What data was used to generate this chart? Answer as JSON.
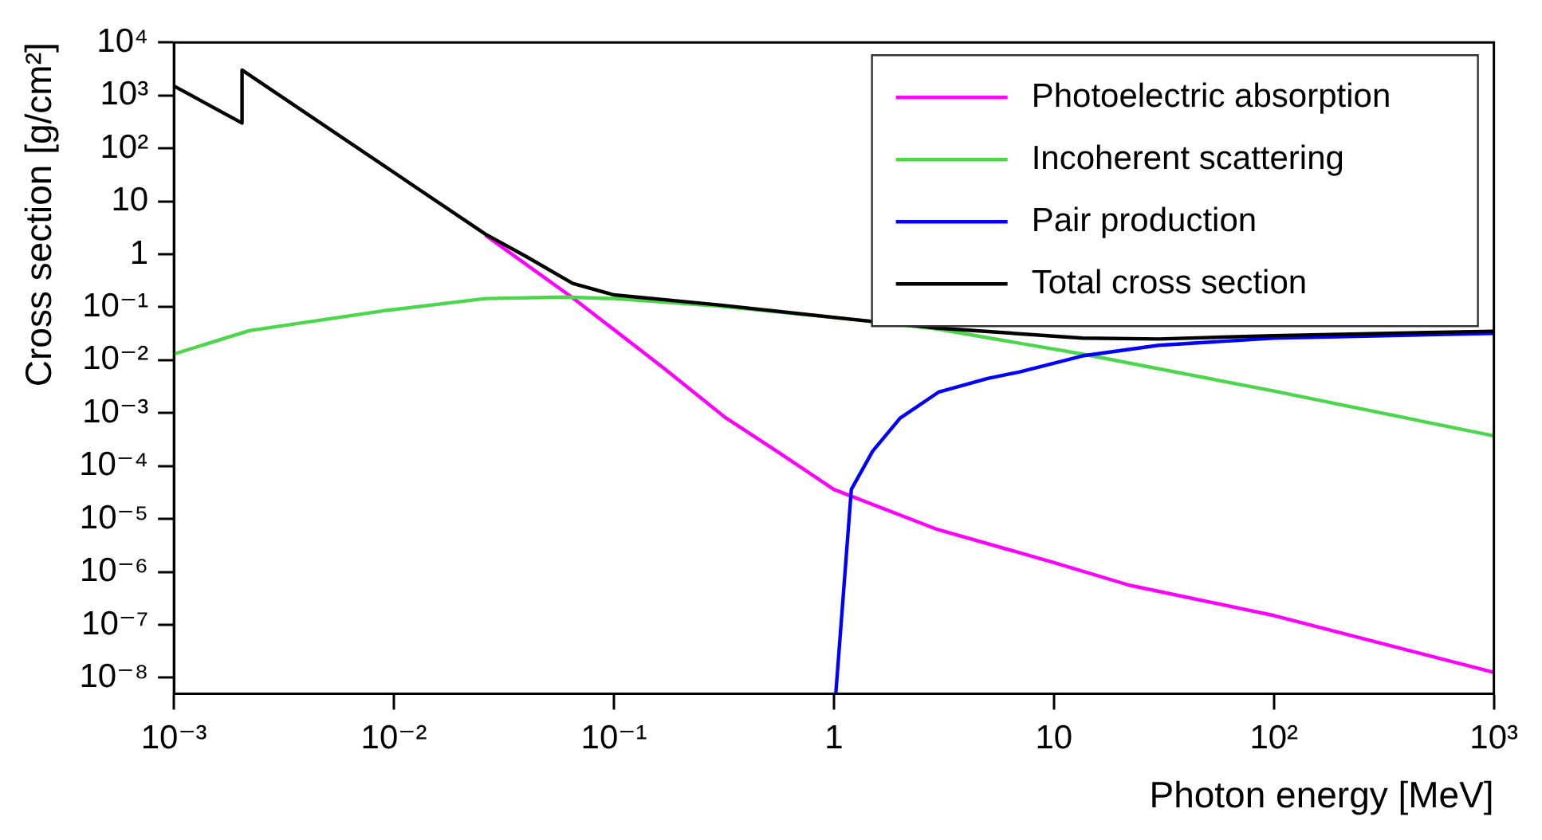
{
  "chart_data": {
    "type": "line",
    "xlabel": "Photon energy [MeV]",
    "ylabel": "Cross section [g/cm²]",
    "log": "xy",
    "grid": false,
    "legend": "top right",
    "line_style": "solid",
    "xlim": [
      0.001,
      1000
    ],
    "xticks": [
      {
        "value": 0.001,
        "label": "10⁻³"
      },
      {
        "value": 0.01,
        "label": "10⁻²"
      },
      {
        "value": 0.1,
        "label": "10⁻¹"
      },
      1,
      10,
      {
        "value": 100,
        "label": "10²"
      },
      {
        "value": 1000,
        "label": "10³"
      }
    ],
    "ylim": [
      5e-09,
      10000
    ],
    "yticks": [
      {
        "value": 1e-08,
        "label": "10⁻⁸"
      },
      {
        "value": 1e-07,
        "label": "10⁻⁷"
      },
      {
        "value": 1e-06,
        "label": "10⁻⁶"
      },
      {
        "value": 1e-05,
        "label": "10⁻⁵"
      },
      {
        "value": 0.0001,
        "label": "10⁻⁴"
      },
      {
        "value": 0.001,
        "label": "10⁻³"
      },
      {
        "value": 0.01,
        "label": "10⁻²"
      },
      {
        "value": 0.1,
        "label": "10⁻¹"
      },
      1,
      10,
      {
        "value": 100,
        "label": "10²"
      },
      {
        "value": 1000,
        "label": "10³"
      },
      {
        "value": 10000,
        "label": "10⁴"
      }
    ],
    "series": [
      {
        "name": "Photoelectric absorption",
        "color": "#ff00ff",
        "x": [
          0.026,
          0.065,
          0.166,
          0.32,
          0.55,
          1,
          2.9,
          10,
          22,
          100,
          1000
        ],
        "values": [
          2.3,
          0.15,
          0.0074,
          0.00083,
          0.00019,
          3.6e-05,
          6.5e-06,
          1.5e-06,
          5.6e-07,
          1.5e-07,
          1.26e-08
        ]
      },
      {
        "name": "Incoherent scattering",
        "color": "#4cd64c",
        "x": [
          0.001,
          0.0022,
          0.0089,
          0.026,
          0.06,
          0.1,
          0.3,
          1.25,
          2.9,
          13.5,
          100,
          1000
        ],
        "values": [
          0.013,
          0.036,
          0.085,
          0.145,
          0.155,
          0.145,
          0.105,
          0.058,
          0.039,
          0.013,
          0.0026,
          0.00037
        ]
      },
      {
        "name": "Pair production",
        "color": "#0000ff",
        "x": [
          1.02,
          1.2,
          1.5,
          2,
          3,
          5,
          7,
          13.5,
          30,
          100,
          1000
        ],
        "values": [
          5e-09,
          3.6e-05,
          0.00019,
          0.0008,
          0.0025,
          0.0045,
          0.006,
          0.012,
          0.019,
          0.026,
          0.032
        ]
      },
      {
        "name": "Total cross section",
        "color": "#000000",
        "x": [
          0.001,
          0.00204,
          0.00204,
          0.026,
          0.04,
          0.065,
          0.1,
          0.3,
          1.25,
          3,
          13.5,
          30,
          100,
          1000
        ],
        "values": [
          1500,
          300,
          3000,
          2.4,
          0.9,
          0.28,
          0.17,
          0.11,
          0.058,
          0.04,
          0.026,
          0.025,
          0.029,
          0.035
        ]
      }
    ]
  }
}
